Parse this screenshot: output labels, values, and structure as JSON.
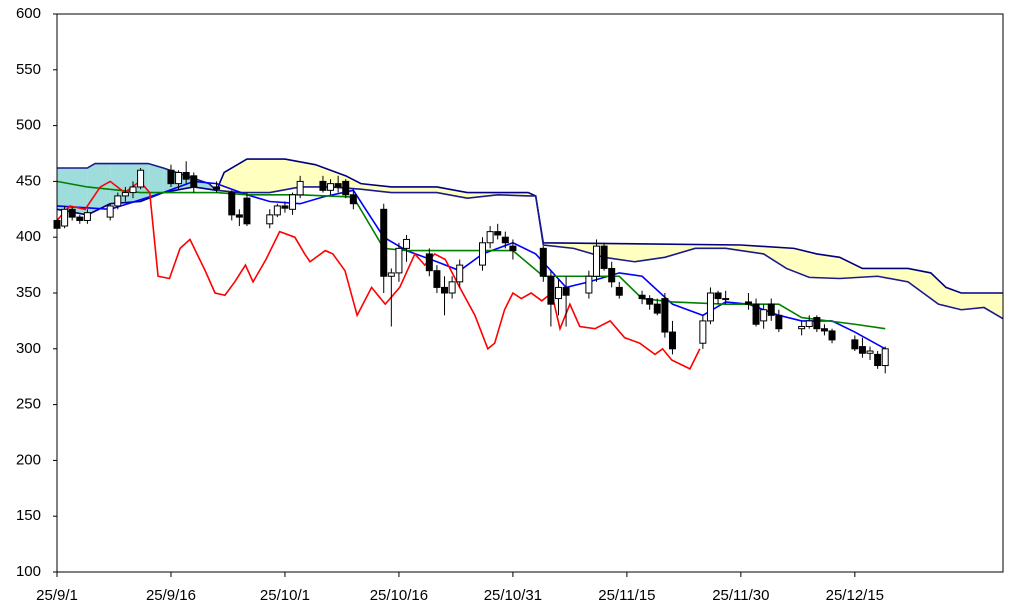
{
  "chart_data": {
    "type": "candlestick",
    "xlim": [
      0,
      124.5
    ],
    "ylim": [
      100,
      600
    ],
    "yticks": [
      100,
      150,
      200,
      250,
      300,
      350,
      400,
      450,
      500,
      550,
      600
    ],
    "xticks": [
      {
        "value": 0,
        "label": "25/9/1"
      },
      {
        "value": 15,
        "label": "25/9/16"
      },
      {
        "value": 30,
        "label": "25/10/1"
      },
      {
        "value": 45,
        "label": "25/10/16"
      },
      {
        "value": 60,
        "label": "25/10/31"
      },
      {
        "value": 75,
        "label": "25/11/15"
      },
      {
        "value": 90,
        "label": "25/11/30"
      },
      {
        "value": 105,
        "label": "25/12/15"
      }
    ],
    "x": [
      0,
      1,
      2,
      3,
      4,
      7,
      8,
      9,
      10,
      11,
      15,
      16,
      17,
      18,
      21,
      23,
      24,
      25,
      28,
      29,
      30,
      31,
      32,
      35,
      36,
      37,
      38,
      39,
      43,
      44,
      45,
      46,
      49,
      50,
      51,
      52,
      53,
      56,
      57,
      58,
      59,
      60,
      64,
      65,
      66,
      67,
      70,
      71,
      72,
      73,
      74,
      77,
      78,
      79,
      80,
      81,
      85,
      86,
      87,
      88,
      91,
      92,
      93,
      94,
      95,
      98,
      99,
      100,
      101,
      102,
      105,
      106,
      107,
      108,
      109
    ],
    "open": [
      415,
      410,
      425,
      418,
      415,
      418,
      428,
      437,
      440,
      445,
      460,
      448,
      458,
      455,
      445,
      440,
      420,
      435,
      412,
      420,
      428,
      425,
      438,
      450,
      442,
      448,
      450,
      438,
      425,
      365,
      368,
      390,
      385,
      370,
      355,
      350,
      360,
      375,
      395,
      405,
      400,
      392,
      390,
      365,
      345,
      355,
      350,
      365,
      392,
      372,
      355,
      348,
      345,
      340,
      345,
      315,
      305,
      325,
      350,
      345,
      342,
      340,
      325,
      340,
      330,
      318,
      320,
      328,
      318,
      316,
      308,
      302,
      296,
      295,
      285
    ],
    "high": [
      420,
      428,
      427,
      420,
      425,
      430,
      440,
      445,
      450,
      462,
      465,
      460,
      468,
      458,
      450,
      442,
      425,
      440,
      425,
      430,
      432,
      440,
      455,
      455,
      452,
      455,
      452,
      442,
      430,
      372,
      395,
      402,
      390,
      375,
      365,
      365,
      380,
      400,
      410,
      412,
      405,
      398,
      392,
      370,
      362,
      365,
      370,
      398,
      395,
      378,
      360,
      352,
      348,
      345,
      350,
      325,
      330,
      355,
      352,
      352,
      350,
      345,
      340,
      345,
      335,
      325,
      330,
      330,
      322,
      318,
      312,
      310,
      302,
      298,
      302
    ],
    "low": [
      407,
      408,
      415,
      412,
      412,
      415,
      425,
      432,
      435,
      443,
      445,
      443,
      448,
      440,
      440,
      415,
      410,
      410,
      408,
      418,
      422,
      420,
      435,
      440,
      438,
      440,
      435,
      425,
      350,
      320,
      360,
      378,
      365,
      350,
      330,
      345,
      355,
      370,
      390,
      398,
      390,
      380,
      360,
      320,
      330,
      320,
      345,
      360,
      370,
      355,
      345,
      340,
      335,
      330,
      310,
      295,
      300,
      322,
      340,
      340,
      335,
      320,
      318,
      325,
      315,
      312,
      318,
      315,
      312,
      305,
      298,
      292,
      290,
      282,
      278
    ],
    "close": [
      408,
      425,
      418,
      415,
      422,
      428,
      437,
      440,
      445,
      460,
      448,
      458,
      452,
      445,
      443,
      420,
      418,
      412,
      420,
      428,
      426,
      438,
      450,
      442,
      448,
      445,
      438,
      430,
      365,
      368,
      390,
      398,
      370,
      355,
      350,
      360,
      375,
      395,
      405,
      402,
      395,
      388,
      365,
      340,
      355,
      348,
      365,
      392,
      372,
      360,
      348,
      345,
      340,
      332,
      315,
      300,
      325,
      350,
      345,
      345,
      340,
      322,
      335,
      330,
      318,
      320,
      325,
      318,
      316,
      308,
      300,
      296,
      298,
      285,
      300
    ],
    "up_color": "#ffffff",
    "down_color": "#000000",
    "series": [
      {
        "color": "#0000ff",
        "x": [
          0,
          7,
          14,
          18,
          21,
          25,
          28,
          32,
          35,
          39,
          43,
          46,
          50,
          53,
          56,
          60,
          63,
          67,
          70,
          74,
          77,
          81,
          85,
          88,
          91,
          95,
          98,
          102,
          105,
          109
        ],
        "values": [
          428,
          425,
          440,
          450,
          448,
          438,
          432,
          430,
          436,
          442,
          400,
          388,
          378,
          370,
          385,
          395,
          385,
          355,
          360,
          368,
          365,
          340,
          330,
          342,
          340,
          330,
          325,
          325,
          315,
          300
        ]
      },
      {
        "color": "#008000",
        "x": [
          0,
          4,
          11,
          14,
          21,
          25,
          32,
          39,
          43,
          46,
          53,
          60,
          64,
          74,
          77,
          81,
          88,
          95,
          98,
          105,
          109
        ],
        "values": [
          450,
          445,
          440,
          440,
          440,
          438,
          438,
          436,
          390,
          388,
          388,
          388,
          365,
          365,
          345,
          342,
          340,
          340,
          328,
          322,
          318
        ]
      },
      {
        "color": "#ff0000",
        "x": [
          0,
          1.7,
          3.7,
          5.7,
          7,
          8.9,
          10.9,
          12.2,
          13.3,
          14.8,
          16.2,
          17.5,
          19.5,
          20.8,
          22.1,
          23.4,
          24.8,
          25.8,
          27.5,
          29.3,
          31.3,
          32.6,
          33.3,
          35.3,
          36.3,
          37.9,
          39.5,
          41.4,
          43.2,
          45.1,
          47.1,
          48.4,
          49.7,
          51.1,
          53,
          55,
          56.7,
          57.6,
          58.9,
          60,
          61.1,
          62.4,
          63.8,
          65.1,
          66.2,
          67.5,
          68.8,
          70.8,
          72.8,
          74.7,
          76.7,
          78.7,
          79.7,
          80.9,
          83.3,
          84.6
        ],
        "values": [
          415,
          428,
          425,
          445,
          450,
          440,
          450,
          440,
          365,
          363,
          390,
          398,
          370,
          350,
          348,
          360,
          375,
          360,
          380,
          405,
          400,
          385,
          378,
          388,
          385,
          370,
          330,
          355,
          340,
          355,
          385,
          375,
          385,
          380,
          355,
          330,
          300,
          305,
          335,
          350,
          345,
          350,
          343,
          350,
          318,
          340,
          320,
          318,
          325,
          310,
          305,
          295,
          300,
          290,
          282,
          300
        ]
      }
    ],
    "span_a": {
      "color": "#000080",
      "x": [
        0,
        4,
        7,
        11,
        14,
        18,
        21,
        22,
        25,
        30,
        34,
        38,
        40,
        44,
        50,
        54,
        62,
        63,
        64,
        90,
        97,
        100,
        103,
        106,
        112,
        115,
        117,
        119,
        124.5
      ],
      "values": [
        425,
        420,
        430,
        432,
        440,
        445,
        442,
        458,
        470,
        470,
        465,
        455,
        448,
        445,
        445,
        440,
        440,
        437,
        395,
        393,
        390,
        385,
        382,
        372,
        372,
        368,
        355,
        350,
        350
      ]
    },
    "span_b": {
      "color": "#1a1a8c",
      "x": [
        0,
        4,
        5,
        12,
        14,
        20,
        21,
        24,
        28,
        32,
        36,
        40,
        44,
        50,
        54,
        58,
        62,
        63,
        64,
        68,
        72,
        76,
        80,
        84,
        88,
        93,
        96,
        99,
        103,
        108,
        112,
        116,
        119,
        122,
        124.5
      ],
      "values": [
        462,
        462,
        466,
        466,
        462,
        448,
        442,
        440,
        440,
        445,
        445,
        443,
        440,
        440,
        435,
        438,
        437,
        437,
        393,
        390,
        382,
        378,
        382,
        390,
        390,
        385,
        372,
        364,
        363,
        365,
        360,
        340,
        335,
        337,
        327
      ]
    },
    "cloud_colors": {
      "a_above": "#ffffc0",
      "a_below": "#9fdcdc"
    }
  }
}
